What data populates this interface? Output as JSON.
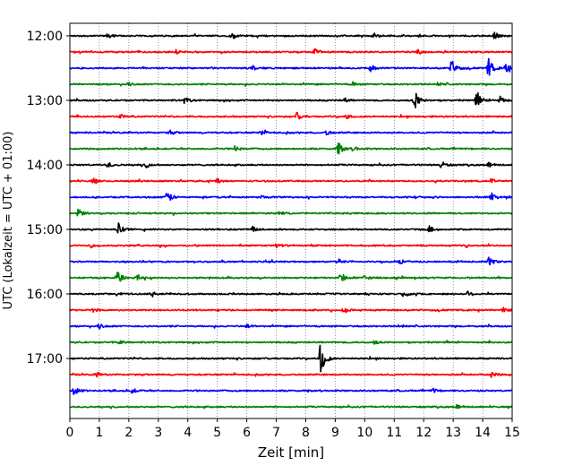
{
  "chart_data": {
    "type": "line",
    "title": "",
    "xlabel": "Zeit  [min]",
    "ylabel": "UTC (Lokalzeit = UTC + 01:00)",
    "xlim": [
      0,
      15
    ],
    "x_ticks": [
      "0",
      "1",
      "2",
      "3",
      "4",
      "5",
      "6",
      "7",
      "8",
      "9",
      "10",
      "11",
      "12",
      "13",
      "14",
      "15"
    ],
    "y_ticks": [
      "12:00",
      "13:00",
      "14:00",
      "15:00",
      "16:00",
      "17:00"
    ],
    "grid": "vertical dotted",
    "color_cycle": [
      "#000000",
      "#ff0000",
      "#0000ff",
      "#008000"
    ],
    "series": [
      {
        "start": "12:00",
        "color": "#000000",
        "events": [
          [
            1.3,
            0.3
          ],
          [
            5.5,
            0.25
          ],
          [
            10.3,
            0.3
          ],
          [
            14.4,
            0.5
          ]
        ]
      },
      {
        "start": "12:15",
        "color": "#ff0000",
        "events": [
          [
            3.6,
            0.25
          ],
          [
            8.3,
            0.45
          ],
          [
            11.8,
            0.3
          ]
        ]
      },
      {
        "start": "12:30",
        "color": "#0000ff",
        "events": [
          [
            6.2,
            0.3
          ],
          [
            10.2,
            0.35
          ],
          [
            12.95,
            1.1
          ],
          [
            14.2,
            1.2
          ],
          [
            14.8,
            0.6
          ]
        ]
      },
      {
        "start": "12:45",
        "color": "#008000",
        "events": [
          [
            2.0,
            0.2
          ],
          [
            9.6,
            0.25
          ],
          [
            12.5,
            0.25
          ]
        ]
      },
      {
        "start": "13:00",
        "color": "#000000",
        "events": [
          [
            3.9,
            0.4
          ],
          [
            9.3,
            0.3
          ],
          [
            11.7,
            1.1
          ],
          [
            13.8,
            1.0
          ],
          [
            14.6,
            0.6
          ]
        ]
      },
      {
        "start": "13:15",
        "color": "#ff0000",
        "events": [
          [
            1.7,
            0.3
          ],
          [
            7.7,
            0.45
          ],
          [
            9.4,
            0.3
          ]
        ]
      },
      {
        "start": "13:30",
        "color": "#0000ff",
        "events": [
          [
            3.4,
            0.25
          ],
          [
            6.5,
            0.3
          ],
          [
            8.7,
            0.3
          ]
        ]
      },
      {
        "start": "13:45",
        "color": "#008000",
        "events": [
          [
            5.6,
            0.35
          ],
          [
            9.1,
            0.8
          ],
          [
            9.6,
            0.3
          ]
        ]
      },
      {
        "start": "14:00",
        "color": "#000000",
        "events": [
          [
            1.3,
            0.3
          ],
          [
            2.6,
            0.3
          ],
          [
            12.6,
            0.5
          ],
          [
            14.2,
            0.3
          ]
        ]
      },
      {
        "start": "14:15",
        "color": "#ff0000",
        "events": [
          [
            0.8,
            0.3
          ],
          [
            5.0,
            0.3
          ],
          [
            14.3,
            0.3
          ]
        ]
      },
      {
        "start": "14:30",
        "color": "#0000ff",
        "events": [
          [
            3.3,
            0.8
          ],
          [
            6.4,
            0.3
          ],
          [
            14.3,
            0.5
          ]
        ]
      },
      {
        "start": "14:45",
        "color": "#008000",
        "events": [
          [
            0.3,
            0.6
          ],
          [
            7.1,
            0.3
          ]
        ]
      },
      {
        "start": "15:00",
        "color": "#000000",
        "events": [
          [
            1.65,
            0.75
          ],
          [
            6.2,
            0.3
          ],
          [
            12.2,
            0.3
          ]
        ]
      },
      {
        "start": "15:15",
        "color": "#ff0000",
        "events": [
          [
            0.7,
            0.3
          ],
          [
            7.0,
            0.3
          ]
        ]
      },
      {
        "start": "15:30",
        "color": "#0000ff",
        "events": [
          [
            9.1,
            0.35
          ],
          [
            11.2,
            0.3
          ],
          [
            14.2,
            0.7
          ]
        ]
      },
      {
        "start": "15:45",
        "color": "#008000",
        "events": [
          [
            1.6,
            0.9
          ],
          [
            2.3,
            0.4
          ],
          [
            9.2,
            0.7
          ],
          [
            10.0,
            0.35
          ]
        ]
      },
      {
        "start": "16:00",
        "color": "#000000",
        "events": [
          [
            2.8,
            0.3
          ],
          [
            11.3,
            0.3
          ],
          [
            13.5,
            0.3
          ]
        ]
      },
      {
        "start": "16:15",
        "color": "#ff0000",
        "events": [
          [
            0.8,
            0.25
          ],
          [
            9.3,
            0.45
          ],
          [
            14.7,
            0.35
          ]
        ]
      },
      {
        "start": "16:30",
        "color": "#0000ff",
        "events": [
          [
            1.0,
            0.35
          ],
          [
            6.0,
            0.25
          ],
          [
            11.2,
            0.25
          ]
        ]
      },
      {
        "start": "16:45",
        "color": "#008000",
        "events": [
          [
            1.7,
            0.25
          ],
          [
            10.3,
            0.25
          ]
        ]
      },
      {
        "start": "17:00",
        "color": "#000000",
        "events": [
          [
            8.5,
            2.4
          ]
        ]
      },
      {
        "start": "17:15",
        "color": "#ff0000",
        "events": [
          [
            0.9,
            0.3
          ],
          [
            14.3,
            0.35
          ]
        ]
      },
      {
        "start": "17:30",
        "color": "#0000ff",
        "events": [
          [
            0.15,
            0.7
          ],
          [
            2.1,
            0.3
          ],
          [
            12.3,
            0.25
          ]
        ]
      },
      {
        "start": "17:45",
        "color": "#008000",
        "events": [
          [
            13.1,
            0.3
          ]
        ]
      }
    ]
  }
}
